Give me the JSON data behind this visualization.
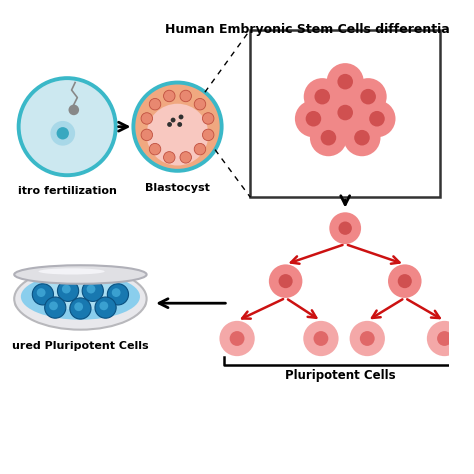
{
  "title": "Human Embryonic Stem Cells differentia",
  "bg_color": "#ffffff",
  "cell_fill": "#f08888",
  "cell_fill_light": "#f4a8a8",
  "cell_inner_dark": "#d05050",
  "cell_inner_mid": "#e07070",
  "teal_color": "#3ab8c8",
  "teal_light": "#cce8f0",
  "teal_mid": "#7fd0dc",
  "arrow_red": "#cc1111",
  "arrow_black": "#111111",
  "dish_outer_color": "#e8e8e8",
  "dish_blue_dark": "#1a7aaa",
  "dish_blue_mid": "#4aaad0",
  "dish_blue_light": "#a0ddf0",
  "dish_rim_color": "#c8c8cc",
  "label_blastocyst": "Blastocyst",
  "label_fertilization": "itro fertilization",
  "label_pluripotent": "Pluripotent Cells",
  "label_cultured": "ured Pluripotent Cells",
  "title_fontsize": 9,
  "label_fontsize": 8
}
